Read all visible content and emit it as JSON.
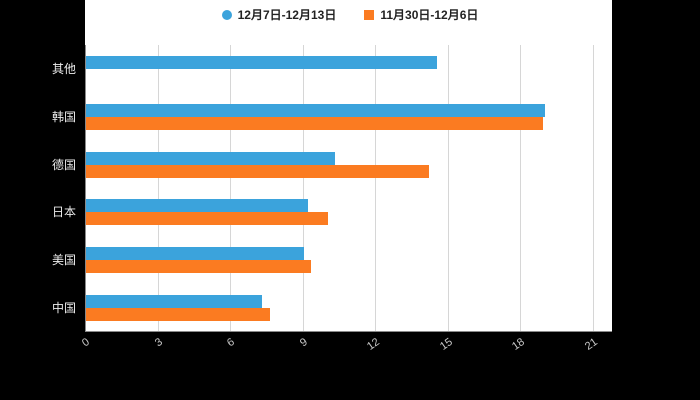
{
  "legend": {
    "items": [
      {
        "label": "12月7日-12月13日",
        "color": "#3BA3DC",
        "marker": "circle"
      },
      {
        "label": "11月30日-12月6日",
        "color": "#FB7B21",
        "marker": "square"
      }
    ]
  },
  "chart_data": {
    "type": "bar",
    "orientation": "horizontal",
    "title": "",
    "xlabel": "",
    "ylabel": "",
    "categories": [
      "其他",
      "韩国",
      "德国",
      "日本",
      "美国",
      "中国"
    ],
    "series": [
      {
        "name": "12月7日-12月13日",
        "color": "#3BA3DC",
        "values": [
          14.5,
          19,
          10.3,
          9.2,
          9,
          7.3
        ]
      },
      {
        "name": "11月30日-12月6日",
        "color": "#FB7B21",
        "values": [
          0,
          18.9,
          14.2,
          10,
          9.3,
          7.6
        ]
      }
    ],
    "x_ticks": [
      0,
      3,
      6,
      9,
      12,
      15,
      18,
      21
    ],
    "xlim": [
      0,
      21.8
    ],
    "grid": true,
    "legend_position": "top",
    "background": "#000000",
    "plot_background": "#ffffff",
    "gridline_color": "#d6d6d6",
    "axis_line_color": "#8a8a8a",
    "category_label_color": "#ececec",
    "tick_label_color": "#c9c9c9"
  }
}
